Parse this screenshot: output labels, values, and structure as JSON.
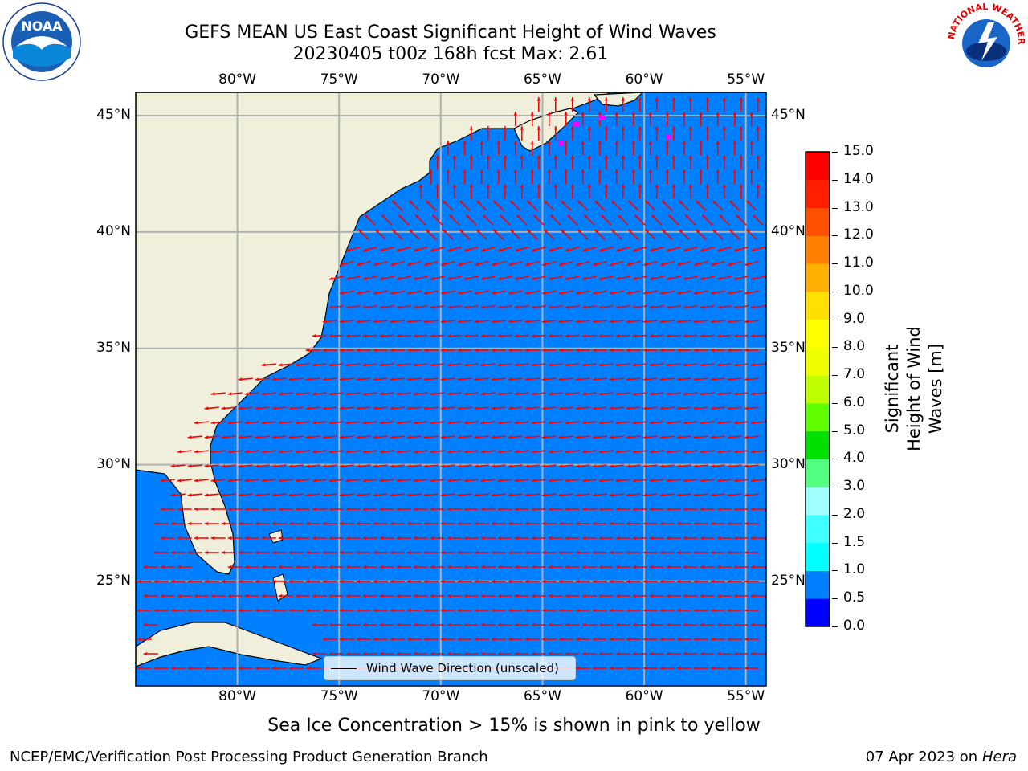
{
  "title": {
    "line1": "GEFS MEAN US East Coast Significant Height of Wind Waves",
    "line2": "20230405 t00z 168h fcst   Max: 2.61"
  },
  "logos": {
    "left": {
      "icon": "noaa-logo",
      "text": "NOAA"
    },
    "right": {
      "icon": "nws-logo",
      "text": "NATIONAL WEATHER SERVICE"
    }
  },
  "map": {
    "lon_range": [
      -85,
      -54
    ],
    "lat_range": [
      20.5,
      46
    ],
    "lon_ticks": [
      {
        "value": -80,
        "label": "80°W"
      },
      {
        "value": -75,
        "label": "75°W"
      },
      {
        "value": -70,
        "label": "70°W"
      },
      {
        "value": -65,
        "label": "65°W"
      },
      {
        "value": -60,
        "label": "60°W"
      },
      {
        "value": -55,
        "label": "55°W"
      }
    ],
    "lat_ticks": [
      {
        "value": 45,
        "label": "45°N"
      },
      {
        "value": 40,
        "label": "40°N"
      },
      {
        "value": 35,
        "label": "35°N"
      },
      {
        "value": 30,
        "label": "30°N"
      },
      {
        "value": 25,
        "label": "25°N"
      }
    ],
    "colors": {
      "land": "#efefdc",
      "grid": "#b0b0b0",
      "arrow": "#ff0000",
      "coast": "#000000",
      "ice": "#ff00ff"
    },
    "legend_label": "Wind Wave Direction (unscaled)"
  },
  "colorbar": {
    "label": "Significant Height of Wind Waves [m]",
    "ticks": [
      "0.0",
      "0.5",
      "1.0",
      "1.5",
      "2.0",
      "3.0",
      "4.0",
      "5.0",
      "6.0",
      "7.0",
      "8.0",
      "9.0",
      "10.0",
      "11.0",
      "12.0",
      "13.0",
      "14.0",
      "15.0"
    ],
    "colors": [
      "#0000ff",
      "#0080ff",
      "#00ffff",
      "#40ffff",
      "#a0ffff",
      "#50ff80",
      "#00e000",
      "#60ff00",
      "#c0ff00",
      "#f0ff00",
      "#ffff00",
      "#ffe000",
      "#ffb000",
      "#ff8000",
      "#ff5000",
      "#ff2000",
      "#ff0000"
    ]
  },
  "footer": {
    "ice_note": "Sea Ice Concentration > 15% is shown in pink to yellow",
    "org": "NCEP/EMC/Verification Post Processing Product Generation Branch",
    "date": "07 Apr 2023 on",
    "machine": "Hera"
  }
}
